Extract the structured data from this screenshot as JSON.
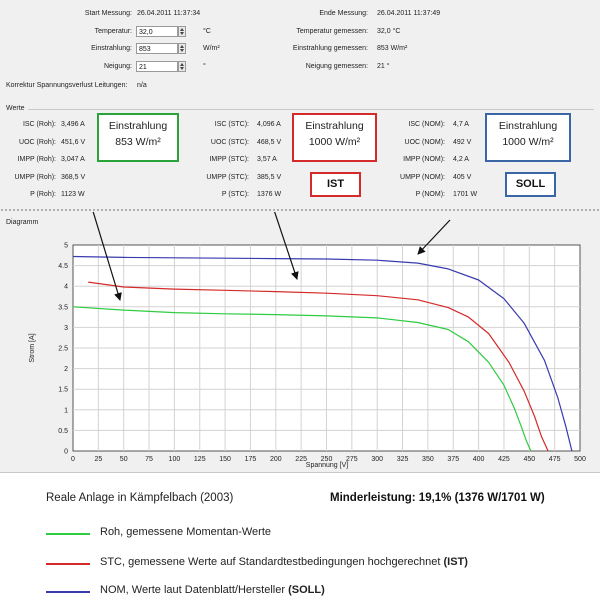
{
  "measurement": {
    "start_label": "Start Messung:",
    "start_value": "26.04.2011 11:37:34",
    "end_label": "Ende Messung:",
    "end_value": "26.04.2011 11:37:49",
    "temp_label": "Temperatur:",
    "temp_value": "32,0",
    "temp_unit": "°C",
    "irr_label": "Einstrahlung:",
    "irr_value": "853",
    "irr_unit": "W/m²",
    "tilt_label": "Neigung:",
    "tilt_value": "21",
    "tilt_unit": "°",
    "temp_meas_label": "Temperatur gemessen:",
    "temp_meas_value": "32,0 °C",
    "irr_meas_label": "Einstrahlung gemessen:",
    "irr_meas_value": "853 W/m²",
    "tilt_meas_label": "Neigung gemessen:",
    "tilt_meas_value": "21 °",
    "corr_label": "Korrektur Spannungsverlust Leitungen:",
    "corr_value": "n/a"
  },
  "werte": {
    "group_label": "Werte",
    "roh": [
      {
        "label": "ISC (Roh):",
        "value": "3,496 A"
      },
      {
        "label": "UOC (Roh):",
        "value": "451,6 V"
      },
      {
        "label": "IMPP (Roh):",
        "value": "3,047 A"
      },
      {
        "label": "UMPP (Roh):",
        "value": "368,5 V"
      },
      {
        "label": "P (Roh):",
        "value": "1123 W"
      }
    ],
    "stc": [
      {
        "label": "ISC (STC):",
        "value": "4,096 A"
      },
      {
        "label": "UOC (STC):",
        "value": "468,5 V"
      },
      {
        "label": "IMPP (STC):",
        "value": "3,57 A"
      },
      {
        "label": "UMPP (STC):",
        "value": "385,5 V"
      },
      {
        "label": "P (STC):",
        "value": "1376 W"
      }
    ],
    "nom": [
      {
        "label": "ISC (NOM):",
        "value": "4,7 A"
      },
      {
        "label": "UOC (NOM):",
        "value": "492 V"
      },
      {
        "label": "IMPP (NOM):",
        "value": "4,2 A"
      },
      {
        "label": "UMPP (NOM):",
        "value": "405 V"
      },
      {
        "label": "P (NOM):",
        "value": "1701 W"
      }
    ],
    "box_roh": {
      "line1": "Einstrahlung",
      "line2": "853 W/m²",
      "color": "#2aa33a"
    },
    "box_stc": {
      "line1": "Einstrahlung",
      "line2": "1000 W/m²",
      "color": "#d42a2a"
    },
    "box_nom": {
      "line1": "Einstrahlung",
      "line2": "1000 W/m²",
      "color": "#3a66a8"
    },
    "tag_ist": "IST",
    "tag_soll": "SOLL"
  },
  "diagram": {
    "group_label": "Diagramm"
  },
  "chart_data": {
    "type": "line",
    "xlabel": "Spannung [V]",
    "ylabel": "Strom [A]",
    "xlim": [
      0,
      500
    ],
    "ylim": [
      0,
      5
    ],
    "xticks": [
      0,
      25,
      50,
      75,
      100,
      125,
      150,
      175,
      200,
      225,
      250,
      275,
      300,
      325,
      350,
      375,
      400,
      425,
      450,
      475,
      500
    ],
    "yticks": [
      0,
      0.5,
      1,
      1.5,
      2,
      2.5,
      3,
      3.5,
      4,
      4.5,
      5
    ],
    "grid": true,
    "series": [
      {
        "color": "#2ecc40",
        "x": [
          0,
          50,
          100,
          150,
          200,
          250,
          300,
          340,
          370,
          390,
          410,
          425,
          435,
          442,
          447,
          451.6
        ],
        "y": [
          3.5,
          3.42,
          3.36,
          3.33,
          3.31,
          3.28,
          3.23,
          3.12,
          2.95,
          2.65,
          2.15,
          1.6,
          1.05,
          0.6,
          0.25,
          0
        ]
      },
      {
        "color": "#d42a2a",
        "x": [
          15,
          50,
          100,
          150,
          200,
          250,
          300,
          340,
          370,
          390,
          410,
          430,
          445,
          455,
          462,
          468.5
        ],
        "y": [
          4.1,
          3.98,
          3.93,
          3.9,
          3.87,
          3.83,
          3.77,
          3.67,
          3.48,
          3.25,
          2.85,
          2.15,
          1.45,
          0.85,
          0.35,
          0
        ]
      },
      {
        "color": "#3a3ab0",
        "x": [
          0,
          50,
          100,
          150,
          200,
          250,
          300,
          340,
          370,
          400,
          425,
          445,
          465,
          478,
          486,
          492
        ],
        "y": [
          4.72,
          4.7,
          4.69,
          4.68,
          4.67,
          4.66,
          4.63,
          4.56,
          4.42,
          4.15,
          3.7,
          3.1,
          2.2,
          1.3,
          0.6,
          0
        ]
      }
    ]
  },
  "caption": {
    "location": "Reale Anlage in Kämpfelbach (2003)",
    "shortfall": "Minderleistung:  19,1%  (1376 W/1701 W)"
  },
  "legend": [
    {
      "text": "Roh,  gemessene Momentan-Werte",
      "bold": "",
      "color": "#2ecc40"
    },
    {
      "text": "STC,  gemessene Werte auf Standardtestbedingungen hochgerechnet  ",
      "bold": "(IST)",
      "color": "#d42a2a"
    },
    {
      "text": "NOM, Werte laut Datenblatt/Hersteller  ",
      "bold": "(SOLL)",
      "color": "#3a3ab0"
    }
  ]
}
